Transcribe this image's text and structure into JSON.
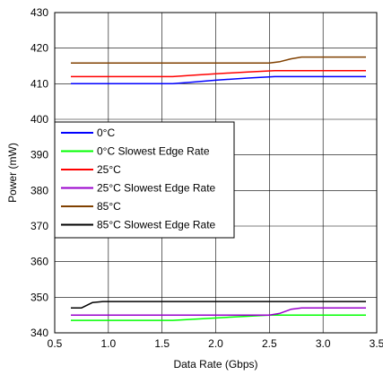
{
  "chart_data": {
    "type": "line",
    "title": "",
    "xlabel": "Data Rate (Gbps)",
    "ylabel": "Power (mW)",
    "xlim": [
      0.5,
      3.5
    ],
    "ylim": [
      340,
      430
    ],
    "xticks": [
      "0.5",
      "1.0",
      "1.5",
      "2.0",
      "2.5",
      "3.0",
      "3.5"
    ],
    "yticks": [
      "340",
      "350",
      "360",
      "370",
      "380",
      "390",
      "400",
      "410",
      "420",
      "430"
    ],
    "grid": true,
    "legend_position": "left-middle",
    "series": [
      {
        "name": "0°C",
        "color": "#0000ff",
        "points": [
          [
            0.65,
            410
          ],
          [
            1.0,
            410
          ],
          [
            1.6,
            410
          ],
          [
            1.8,
            410.5
          ],
          [
            2.0,
            411
          ],
          [
            2.3,
            411.6
          ],
          [
            2.55,
            412
          ],
          [
            2.7,
            412
          ],
          [
            3.0,
            412
          ],
          [
            3.4,
            412
          ]
        ]
      },
      {
        "name": "0°C Slowest Edge Rate",
        "color": "#00ff00",
        "points": [
          [
            0.65,
            343.5
          ],
          [
            1.0,
            343.5
          ],
          [
            1.6,
            343.5
          ],
          [
            1.9,
            344
          ],
          [
            2.2,
            344.5
          ],
          [
            2.5,
            345
          ],
          [
            2.7,
            345
          ],
          [
            3.0,
            345
          ],
          [
            3.4,
            345
          ]
        ]
      },
      {
        "name": "25°C",
        "color": "#ff0000",
        "points": [
          [
            0.65,
            412
          ],
          [
            1.0,
            412
          ],
          [
            1.6,
            412
          ],
          [
            1.8,
            412.4
          ],
          [
            2.0,
            412.8
          ],
          [
            2.3,
            413.3
          ],
          [
            2.55,
            413.7
          ],
          [
            2.7,
            413.7
          ],
          [
            3.0,
            413.7
          ],
          [
            3.4,
            413.7
          ]
        ]
      },
      {
        "name": "25°C Slowest Edge Rate",
        "color": "#9900cc",
        "points": [
          [
            0.65,
            345
          ],
          [
            1.0,
            345
          ],
          [
            1.6,
            345
          ],
          [
            2.0,
            345
          ],
          [
            2.5,
            345
          ],
          [
            2.6,
            345.5
          ],
          [
            2.7,
            346.6
          ],
          [
            2.8,
            347
          ],
          [
            3.0,
            347
          ],
          [
            3.4,
            347
          ]
        ]
      },
      {
        "name": "85°C",
        "color": "#804000",
        "points": [
          [
            0.65,
            415.8
          ],
          [
            1.0,
            415.8
          ],
          [
            1.6,
            415.8
          ],
          [
            2.0,
            415.8
          ],
          [
            2.5,
            415.8
          ],
          [
            2.6,
            416.2
          ],
          [
            2.7,
            417
          ],
          [
            2.8,
            417.5
          ],
          [
            3.0,
            417.5
          ],
          [
            3.4,
            417.5
          ]
        ]
      },
      {
        "name": "85°C Slowest Edge Rate",
        "color": "#000000",
        "points": [
          [
            0.65,
            347
          ],
          [
            0.75,
            347
          ],
          [
            0.85,
            348.5
          ],
          [
            0.95,
            348.8
          ],
          [
            1.2,
            348.8
          ],
          [
            1.6,
            348.8
          ],
          [
            2.0,
            348.8
          ],
          [
            2.5,
            348.8
          ],
          [
            3.0,
            348.8
          ],
          [
            3.4,
            348.8
          ]
        ]
      }
    ]
  }
}
